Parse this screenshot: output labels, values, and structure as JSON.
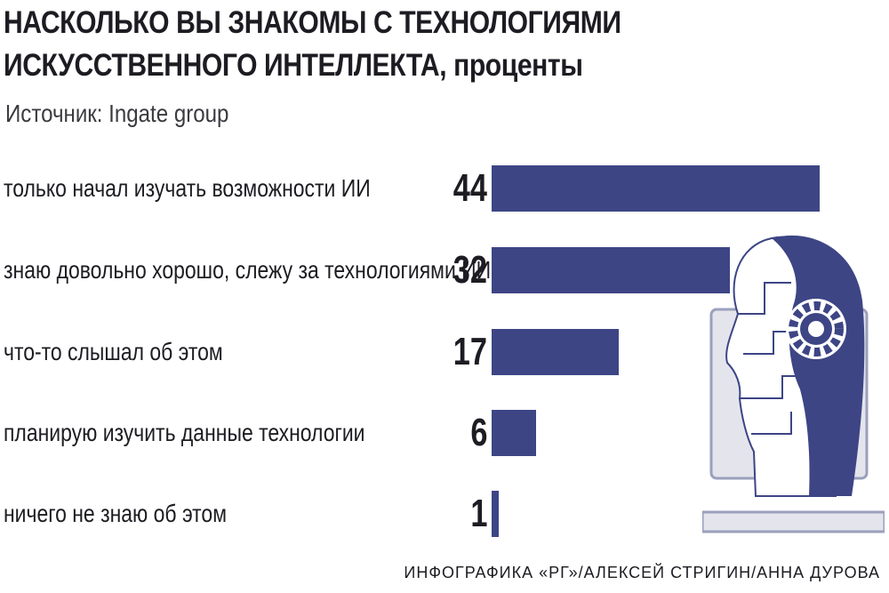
{
  "header": {
    "title_line1": "НАСКОЛЬКО ВЫ ЗНАКОМЫ С ТЕХНОЛОГИЯМИ",
    "title_line2": "ИСКУССТВЕННОГО ИНТЕЛЛЕКТА,",
    "unit": "проценты",
    "source": "Источник: Ingate group"
  },
  "chart_data": {
    "type": "bar",
    "orientation": "horizontal",
    "categories": [
      "только начал изучать возможности ИИ",
      "знаю довольно хорошо, слежу за технологиями ИИ",
      "что-то слышал об этом",
      "планирую изучить данные технологии",
      "ничего не знаю об этом"
    ],
    "values": [
      44,
      32,
      17,
      6,
      1
    ],
    "value_labels": [
      "44",
      "32",
      "17",
      "6",
      "1"
    ],
    "xlim": [
      0,
      44
    ],
    "grid": false,
    "bar_color": "#3d4585"
  },
  "footer": {
    "credit": "ИНФОГРАФИКА «РГ»/АЛЕКСЕЙ СТРИГИН/АННА ДУРОВА"
  },
  "colors": {
    "accent": "#3d4585",
    "text": "#1c1c22",
    "background": "#ffffff",
    "screen_gray": "#e4e5ec"
  },
  "illustration": {
    "icon": "ai-head-laptop-icon"
  }
}
